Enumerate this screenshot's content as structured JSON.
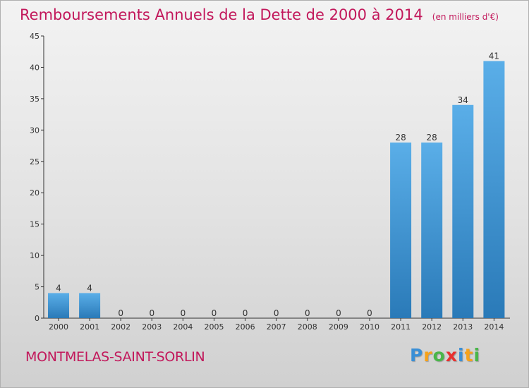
{
  "title": "Remboursements Annuels de la Dette de 2000 à 2014",
  "unit_note": "(en milliers d'€)",
  "place": "MONTMELAS-SAINT-SORLIN",
  "logo": {
    "text": "Proxiti",
    "letters": [
      {
        "ch": "P",
        "color": "#3a8fd6"
      },
      {
        "ch": "r",
        "color": "#f7a21b"
      },
      {
        "ch": "o",
        "color": "#49b649"
      },
      {
        "ch": "x",
        "color": "#e8312f"
      },
      {
        "ch": "i",
        "color": "#3a8fd6"
      },
      {
        "ch": "t",
        "color": "#f7a21b"
      },
      {
        "ch": "i",
        "color": "#49b649"
      }
    ]
  },
  "colors": {
    "title": "#c2185b",
    "bar_top": "#5aaee8",
    "bar_bottom": "#2a7ab8",
    "axis": "#333333"
  },
  "chart_data": {
    "type": "bar",
    "categories": [
      "2000",
      "2001",
      "2002",
      "2003",
      "2004",
      "2005",
      "2006",
      "2007",
      "2008",
      "2009",
      "2010",
      "2011",
      "2012",
      "2013",
      "2014"
    ],
    "values": [
      4,
      4,
      0,
      0,
      0,
      0,
      0,
      0,
      0,
      0,
      0,
      28,
      28,
      34,
      41
    ],
    "ylim": [
      0,
      45
    ],
    "yticks": [
      0,
      5,
      10,
      15,
      20,
      25,
      30,
      35,
      40,
      45
    ],
    "grid": false,
    "legend": "none"
  }
}
